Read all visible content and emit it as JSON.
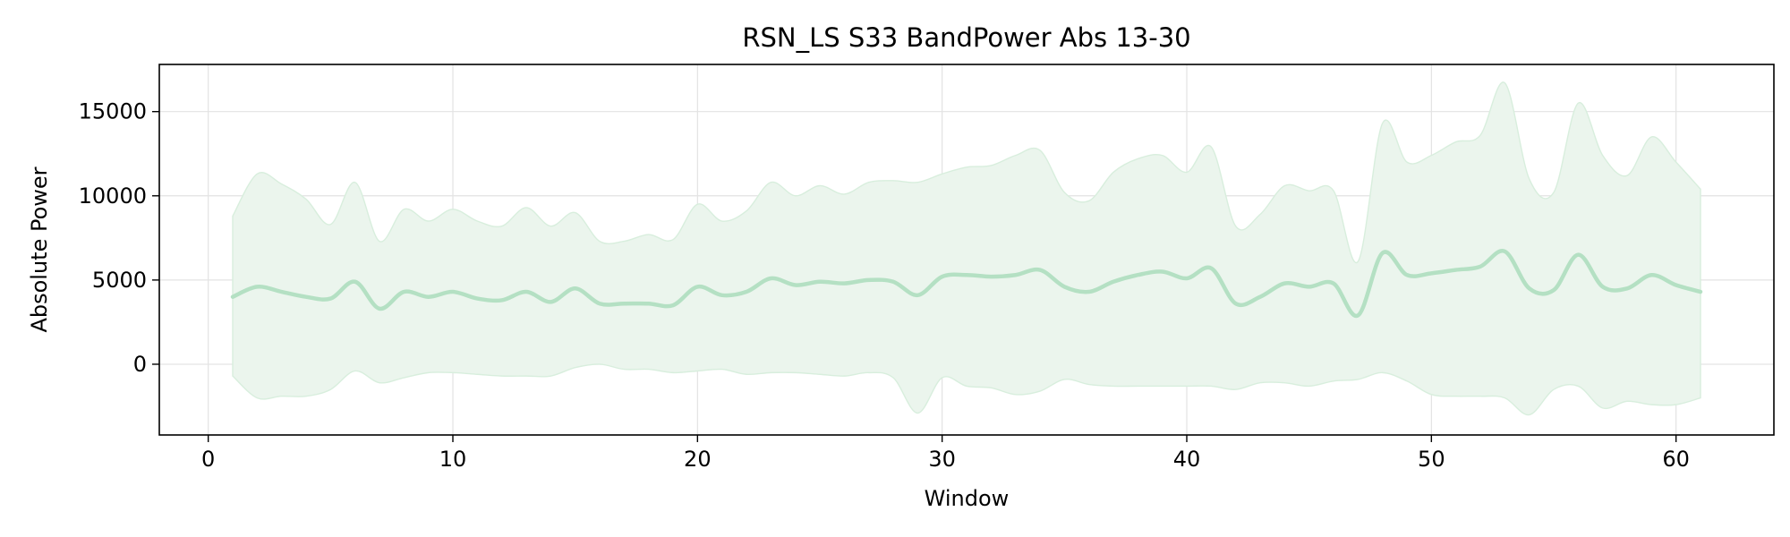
{
  "chart_data": {
    "type": "area",
    "title": "RSN_LS S33 BandPower Abs 13-30",
    "xlabel": "Window",
    "ylabel": "Absolute Power",
    "xlim": [
      -2,
      64
    ],
    "ylim": [
      -4200,
      17800
    ],
    "xticks": [
      0,
      10,
      20,
      30,
      40,
      50,
      60
    ],
    "yticks": [
      0,
      5000,
      10000,
      15000
    ],
    "grid": true,
    "legend": "none",
    "colors": {
      "line": "#b4e0c3",
      "band": "#ebf5ed",
      "band_edge": "#d8eedd",
      "grid": "#e3e3e3"
    },
    "x": [
      1,
      2,
      3,
      4,
      5,
      6,
      7,
      8,
      9,
      10,
      11,
      12,
      13,
      14,
      15,
      16,
      17,
      18,
      19,
      20,
      21,
      22,
      23,
      24,
      25,
      26,
      27,
      28,
      29,
      30,
      31,
      32,
      33,
      34,
      35,
      36,
      37,
      38,
      39,
      40,
      41,
      42,
      43,
      44,
      45,
      46,
      47,
      48,
      49,
      50,
      51,
      52,
      53,
      54,
      55,
      56,
      57,
      58,
      59,
      60,
      61
    ],
    "series": [
      {
        "values": [
          4000,
          4600,
          4300,
          4000,
          3900,
          4900,
          3300,
          4300,
          4000,
          4300,
          3900,
          3800,
          4300,
          3700,
          4500,
          3600,
          3600,
          3600,
          3500,
          4600,
          4100,
          4300,
          5100,
          4700,
          4900,
          4800,
          5000,
          4900,
          4100,
          5200,
          5300,
          5200,
          5300,
          5600,
          4600,
          4300,
          4900,
          5300,
          5500,
          5100,
          5700,
          3600,
          4000,
          4800,
          4600,
          4800,
          2900,
          6600,
          5300,
          5400,
          5600,
          5800,
          6700,
          4500,
          4400,
          6500,
          4600,
          4500,
          5300,
          4700,
          4300
        ]
      },
      {
        "values": [
          8800,
          11300,
          10700,
          9800,
          8300,
          10800,
          7300,
          9200,
          8500,
          9200,
          8500,
          8200,
          9300,
          8200,
          9000,
          7300,
          7300,
          7700,
          7400,
          9500,
          8500,
          9100,
          10800,
          10000,
          10600,
          10100,
          10800,
          10900,
          10800,
          11300,
          11700,
          11800,
          12400,
          12700,
          10200,
          9700,
          11400,
          12200,
          12400,
          11400,
          12900,
          8200,
          8900,
          10600,
          10300,
          10300,
          6100,
          14300,
          12000,
          12400,
          13200,
          13600,
          16700,
          11000,
          10200,
          15500,
          12400,
          11200,
          13500,
          12000,
          10400
        ]
      },
      {
        "values": [
          -700,
          -2000,
          -1900,
          -1900,
          -1500,
          -400,
          -1100,
          -800,
          -500,
          -500,
          -600,
          -700,
          -700,
          -700,
          -200,
          0,
          -300,
          -300,
          -500,
          -400,
          -300,
          -600,
          -500,
          -500,
          -600,
          -700,
          -500,
          -800,
          -2900,
          -800,
          -1300,
          -1400,
          -1800,
          -1600,
          -900,
          -1200,
          -1300,
          -1300,
          -1300,
          -1300,
          -1300,
          -1500,
          -1100,
          -1100,
          -1300,
          -1000,
          -900,
          -500,
          -1000,
          -1800,
          -1900,
          -1900,
          -2000,
          -3000,
          -1500,
          -1300,
          -2600,
          -2200,
          -2400,
          -2400,
          -2000
        ]
      }
    ]
  }
}
